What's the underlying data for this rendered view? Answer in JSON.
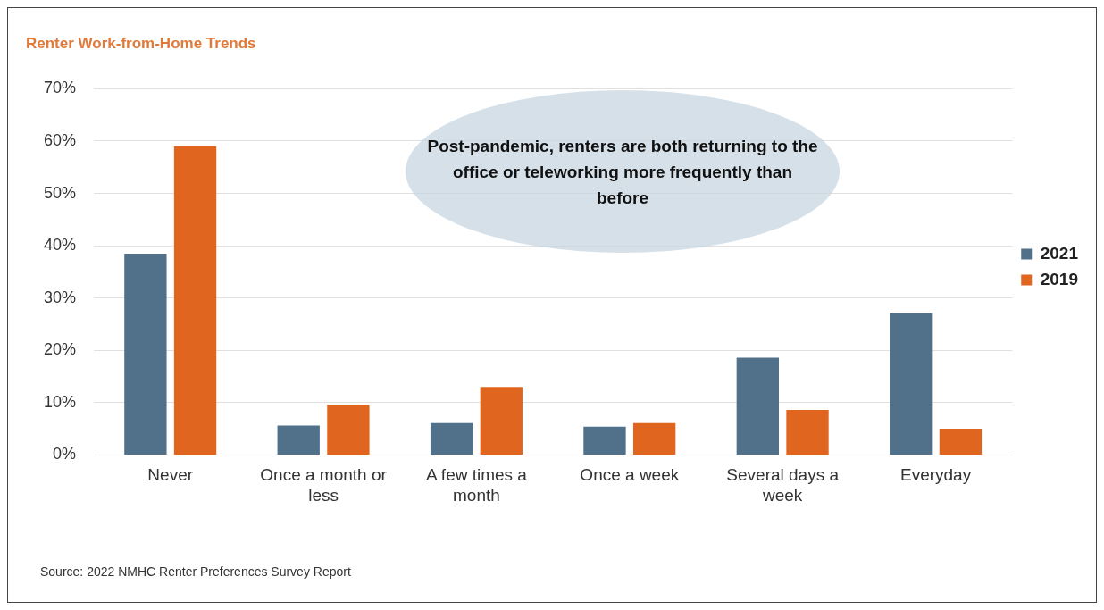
{
  "chart_data": {
    "type": "bar",
    "title": "Renter Work-from-Home Trends",
    "categories": [
      "Never",
      "Once a month or less",
      "A few times a month",
      "Once a week",
      "Several days a week",
      "Everyday"
    ],
    "series": [
      {
        "name": "2021",
        "color": "#51718a",
        "values": [
          38.5,
          5.6,
          6.1,
          5.4,
          18.6,
          27.1
        ]
      },
      {
        "name": "2019",
        "color": "#e0661f",
        "values": [
          59,
          9.6,
          13,
          6.1,
          8.6,
          5
        ]
      }
    ],
    "ylim": [
      0,
      70
    ],
    "yticks": [
      {
        "value": 0,
        "label": "0%"
      },
      {
        "value": 10,
        "label": "10%"
      },
      {
        "value": 20,
        "label": "20%"
      },
      {
        "value": 30,
        "label": "30%"
      },
      {
        "value": 40,
        "label": "40%"
      },
      {
        "value": 50,
        "label": "50%"
      },
      {
        "value": 60,
        "label": "60%"
      },
      {
        "value": 70,
        "label": "70%"
      }
    ],
    "grid": "y",
    "legend": "right",
    "annotations": [
      "Post-pandemic, renters are both returning to the office or teleworking more frequently than before",
      "Source: 2022 NMHC Renter Preferences Survey Report"
    ]
  }
}
